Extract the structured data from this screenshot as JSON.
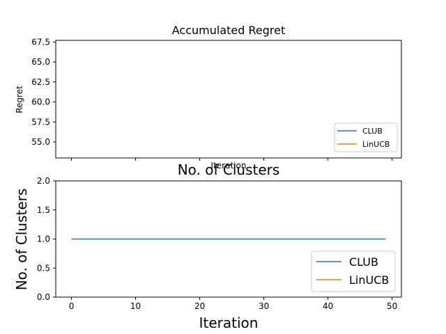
{
  "colors": {
    "club": "#1f77b4",
    "linucb": "#ff7f0e",
    "axis": "#000000",
    "background": "#ffffff"
  },
  "chart_data": [
    {
      "type": "line",
      "title": "Accumulated Regret",
      "xlabel": "Iteration",
      "ylabel": "Regret",
      "xlim": [
        -2.45,
        51.45
      ],
      "ylim": [
        53.0,
        67.7
      ],
      "yticks": [
        "55.0",
        "57.5",
        "60.0",
        "62.5",
        "65.0",
        "67.5"
      ],
      "xticks_visible": false,
      "legend_placement": "lower-right",
      "grid": false,
      "series": [
        {
          "name": "CLUB",
          "x": [],
          "y": []
        },
        {
          "name": "LinUCB",
          "x": [],
          "y": []
        }
      ]
    },
    {
      "type": "line",
      "title": "No. of Clusters",
      "xlabel": "Iteration",
      "ylabel": "No. of Clusters",
      "xlim": [
        -2.45,
        51.45
      ],
      "ylim": [
        0.0,
        2.0
      ],
      "xticks": [
        "0",
        "10",
        "20",
        "30",
        "40",
        "50"
      ],
      "yticks": [
        "0.0",
        "0.5",
        "1.0",
        "1.5",
        "2.0"
      ],
      "legend_placement": "lower-right",
      "grid": false,
      "series": [
        {
          "name": "CLUB",
          "x": [
            0,
            1,
            2,
            3,
            4,
            5,
            6,
            7,
            8,
            9,
            10,
            11,
            12,
            13,
            14,
            15,
            16,
            17,
            18,
            19,
            20,
            21,
            22,
            23,
            24,
            25,
            26,
            27,
            28,
            29,
            30,
            31,
            32,
            33,
            34,
            35,
            36,
            37,
            38,
            39,
            40,
            41,
            42,
            43,
            44,
            45,
            46,
            47,
            48,
            49
          ],
          "y": [
            1,
            1,
            1,
            1,
            1,
            1,
            1,
            1,
            1,
            1,
            1,
            1,
            1,
            1,
            1,
            1,
            1,
            1,
            1,
            1,
            1,
            1,
            1,
            1,
            1,
            1,
            1,
            1,
            1,
            1,
            1,
            1,
            1,
            1,
            1,
            1,
            1,
            1,
            1,
            1,
            1,
            1,
            1,
            1,
            1,
            1,
            1,
            1,
            1,
            1
          ]
        },
        {
          "name": "LinUCB",
          "x": [],
          "y": []
        }
      ]
    }
  ]
}
